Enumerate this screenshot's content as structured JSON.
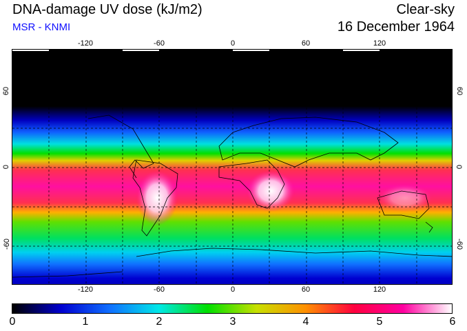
{
  "header": {
    "title": "DNA-damage UV dose (kJ/m2)",
    "subtitle": "MSR - KNMI",
    "condition": "Clear-sky",
    "date": "16 December 1964"
  },
  "map": {
    "lon_ticks": [
      "-120",
      "-60",
      "0",
      "60",
      "120"
    ],
    "lat_ticks": [
      "60",
      "0",
      "-60"
    ],
    "lon_range": [
      -180,
      180
    ],
    "lat_range": [
      -90,
      90
    ]
  },
  "colorbar": {
    "labels": [
      "0",
      "1",
      "2",
      "3",
      "4",
      "5",
      "6"
    ],
    "range": [
      0,
      6
    ],
    "colors": [
      "#000000",
      "#0000d0",
      "#1070ff",
      "#00e8e8",
      "#00e000",
      "#c8e000",
      "#ff9000",
      "#ff0040",
      "#ff00a0",
      "#ffffff"
    ]
  }
}
